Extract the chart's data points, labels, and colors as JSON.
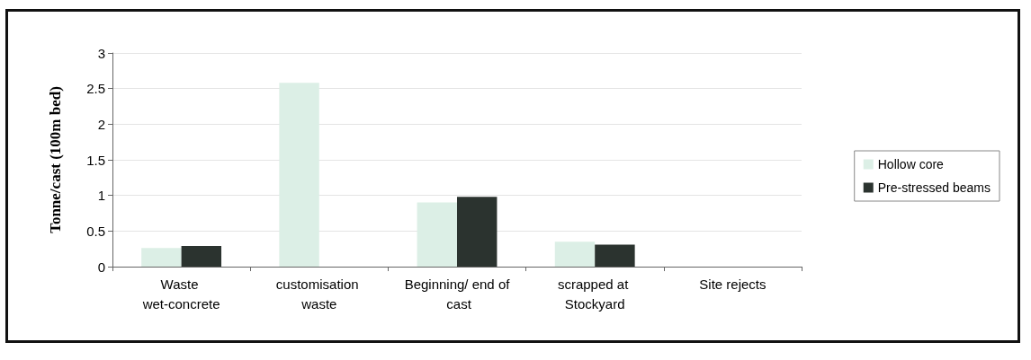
{
  "chart_data": {
    "type": "bar",
    "ylabel": "Tonne/cast (100m bed)",
    "categories": [
      "Waste wet-concrete",
      "customisation waste",
      "Beginning/ end of cast",
      "scrapped at Stockyard",
      "Site rejects"
    ],
    "series": [
      {
        "name": "Hollow core",
        "color": "#dcefe6",
        "values": [
          0.26,
          2.58,
          0.9,
          0.35,
          0
        ]
      },
      {
        "name": "Pre-stressed beams",
        "color": "#2b332f",
        "values": [
          0.29,
          0,
          0.98,
          0.31,
          0
        ]
      }
    ],
    "ylim": [
      0,
      3
    ],
    "yticks": [
      0,
      0.5,
      1,
      1.5,
      2,
      2.5,
      3
    ],
    "grid": "y",
    "legend": "right"
  }
}
